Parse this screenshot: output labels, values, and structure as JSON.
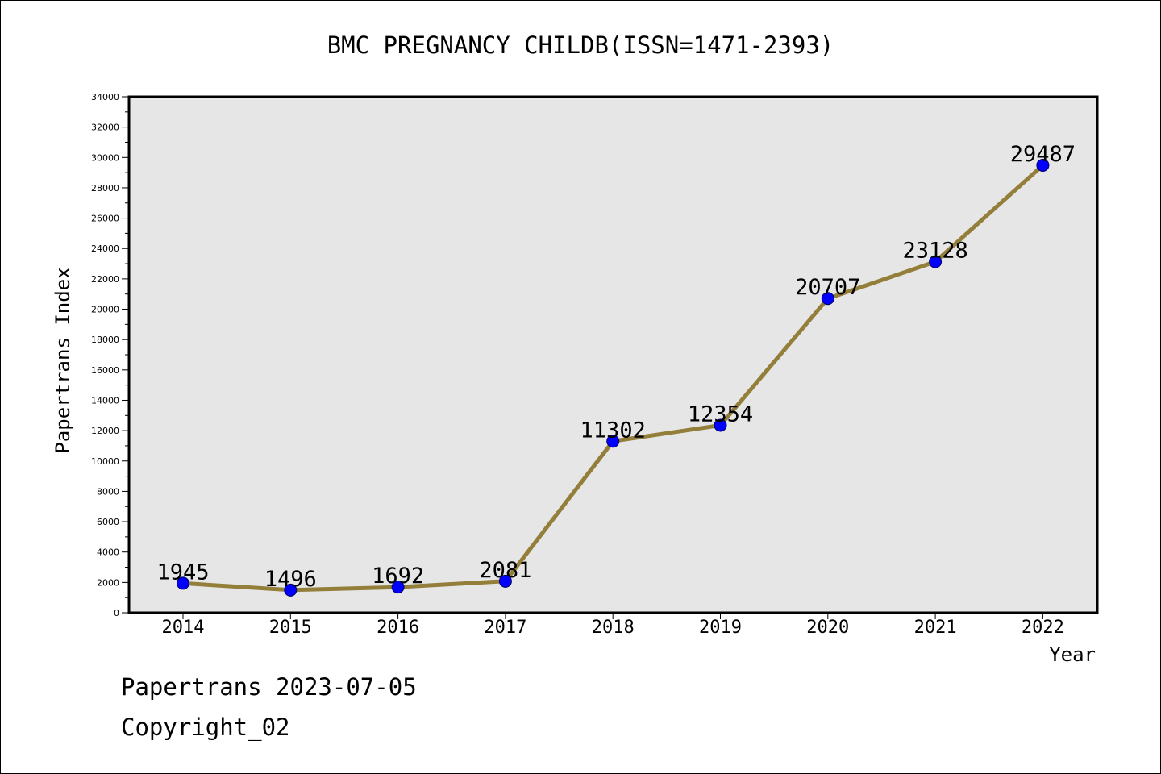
{
  "chart_data": {
    "type": "line",
    "title": "BMC PREGNANCY CHILDB(ISSN=1471-2393)",
    "xlabel": "Year",
    "ylabel": "Papertrans Index",
    "x": [
      "2014",
      "2015",
      "2016",
      "2017",
      "2018",
      "2019",
      "2020",
      "2021",
      "2022"
    ],
    "series": [
      {
        "values": [
          1945,
          1496,
          1692,
          2081,
          11302,
          12354,
          20707,
          23128,
          29487
        ]
      }
    ],
    "data_labels": [
      "1945",
      "1496",
      "1692",
      "2081",
      "11302",
      "12354",
      "20707",
      "23128",
      "29487"
    ],
    "ylim": [
      0,
      34000
    ],
    "y_ticks": [
      "0",
      "2000",
      "4000",
      "6000",
      "8000",
      "10000",
      "12000",
      "14000",
      "16000",
      "18000",
      "20000",
      "22000",
      "24000",
      "26000",
      "28000",
      "30000",
      "32000",
      "34000"
    ],
    "grid": false,
    "legend": "none",
    "colors": {
      "line": "#937e3a",
      "marker": "#0000ff",
      "plot_background": "#e6e6e6",
      "axes": "#000000"
    }
  },
  "footer": {
    "source": "Papertrans 2023-07-05",
    "copyright": "Copyright_02"
  }
}
